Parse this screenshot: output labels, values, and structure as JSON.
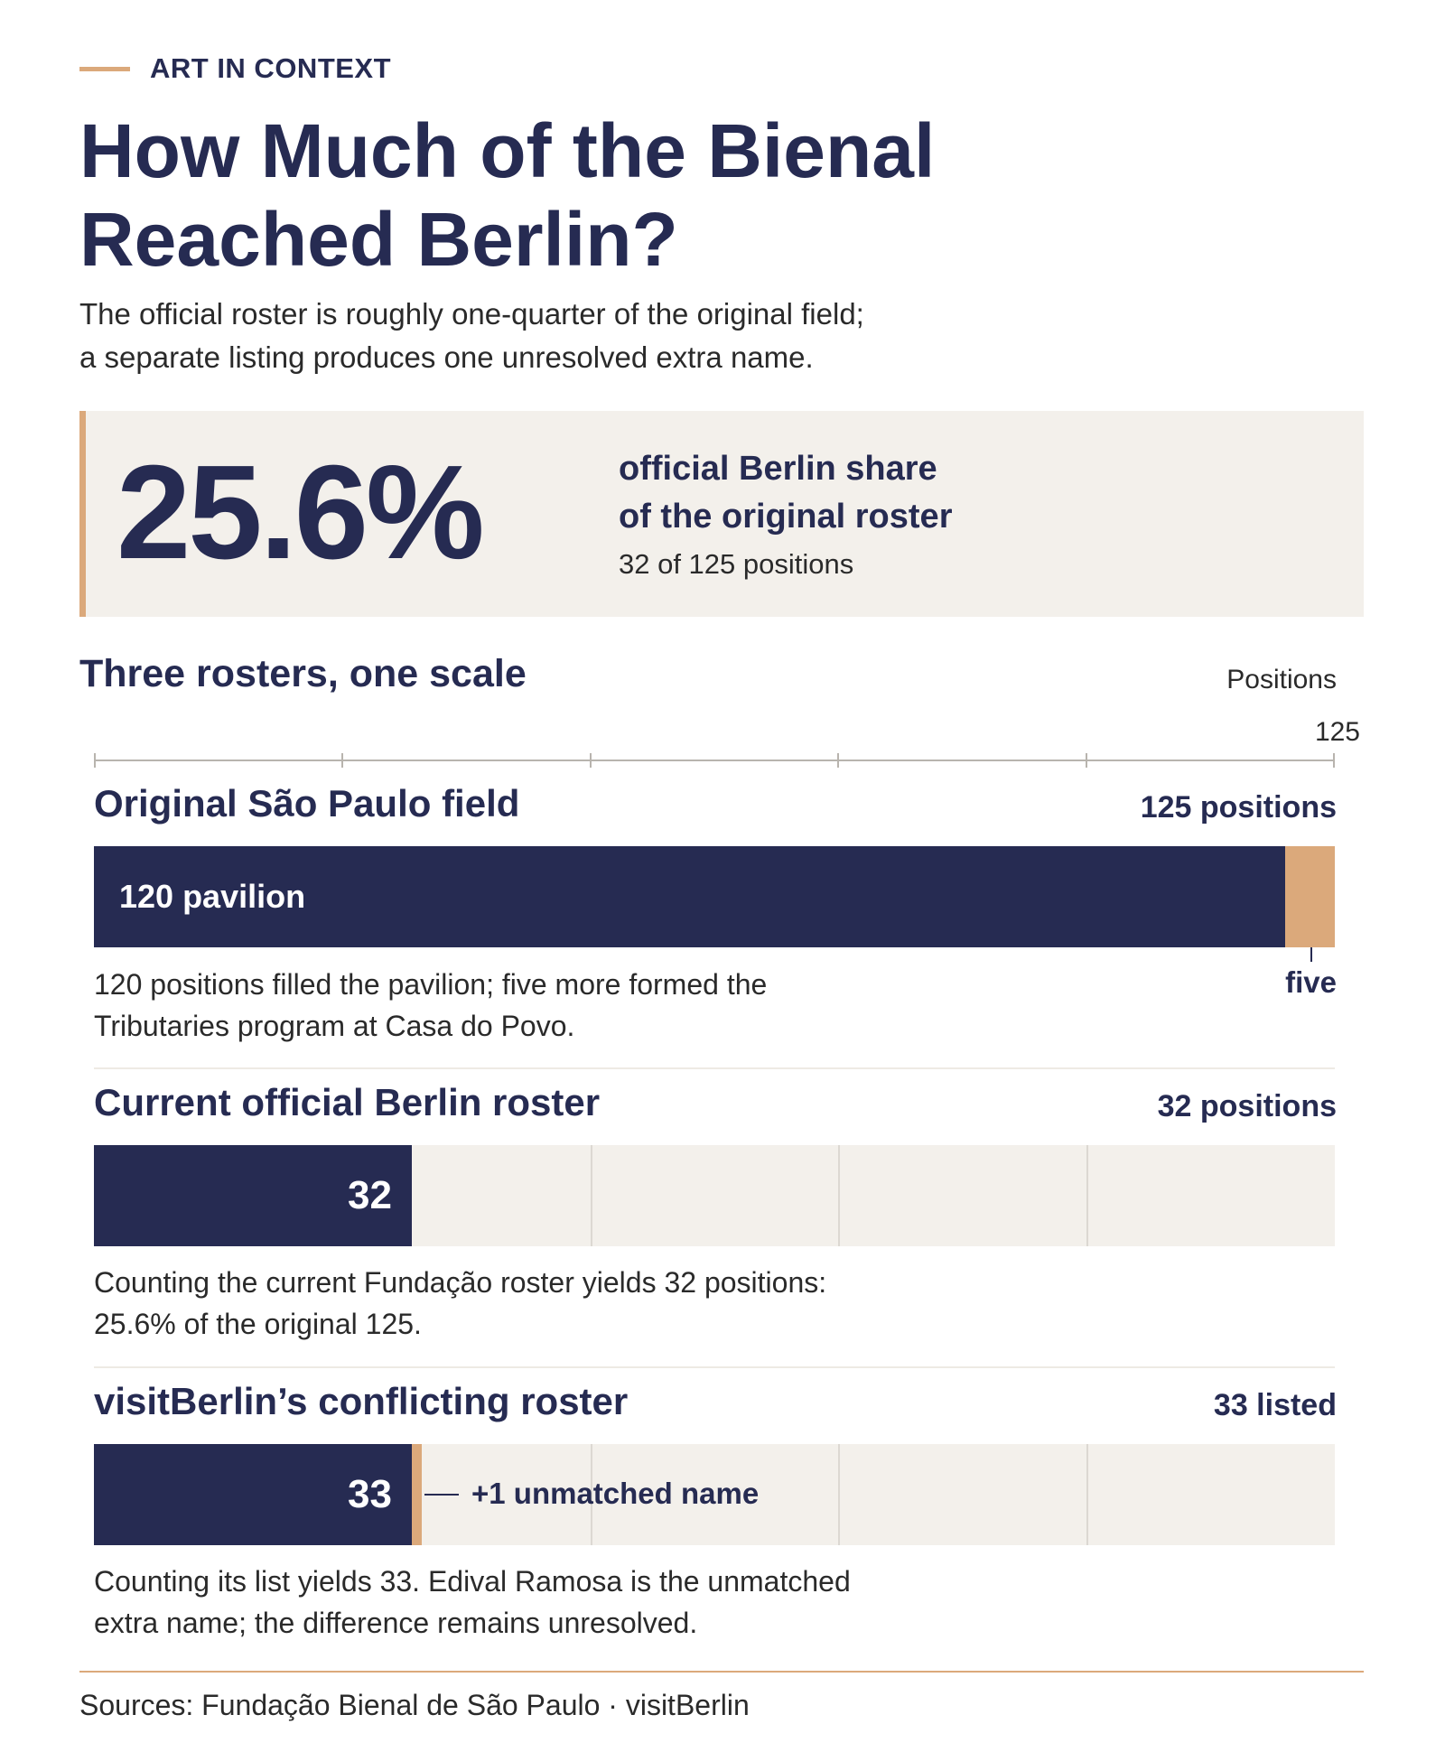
{
  "kicker": "ART IN CONTEXT",
  "title": "How Much of the Bienal Reached Berlin?",
  "subtitle_line1": "The official roster is roughly one-quarter of the original field;",
  "subtitle_line2": "a separate listing produces one unresolved extra name.",
  "callout": {
    "big_number": "25.6%",
    "label_line1": "official Berlin share",
    "label_line2": "of the original roster",
    "sub": "32 of 125 positions"
  },
  "section_title": "Three rosters, one scale",
  "axis": {
    "label": "Positions",
    "max_label": "125"
  },
  "colors": {
    "navy": "#262b52",
    "gold": "#dba97b",
    "panel": "#f3f0eb"
  },
  "chart_data": {
    "type": "bar",
    "title": "Three rosters, one scale",
    "xlabel": "Positions",
    "xlim": [
      0,
      125
    ],
    "grid": true,
    "categories": [
      "Original São Paulo field",
      "Current official Berlin roster",
      "visitBerlin’s conflicting roster"
    ],
    "series": [
      {
        "name": "pavilion",
        "values": [
          120,
          32,
          33
        ]
      },
      {
        "name": "five",
        "values": [
          5,
          0,
          0
        ]
      }
    ]
  },
  "rows": [
    {
      "title": "Original São Paulo field",
      "total_label": "125 positions",
      "bar_label": "120 pavilion",
      "extra_label": "five",
      "note_line1": "120 positions filled the pavilion; five more formed the",
      "note_line2": "Tributaries program at Casa do Povo."
    },
    {
      "title": "Current official Berlin roster",
      "total_label": "32 positions",
      "bar_label": "32",
      "note_line1": "Counting the current Fundação roster yields 32 positions:",
      "note_line2": "25.6% of the original 125."
    },
    {
      "title": "visitBerlin’s conflicting roster",
      "total_label": "33 listed",
      "bar_label": "33",
      "extra_label": "+1 unmatched name",
      "note_line1": "Counting its list yields 33. Edival Ramosa is the unmatched",
      "note_line2": "extra name; the difference remains unresolved."
    }
  ],
  "footer": "Sources: Fundação Bienal de São Paulo · visitBerlin"
}
